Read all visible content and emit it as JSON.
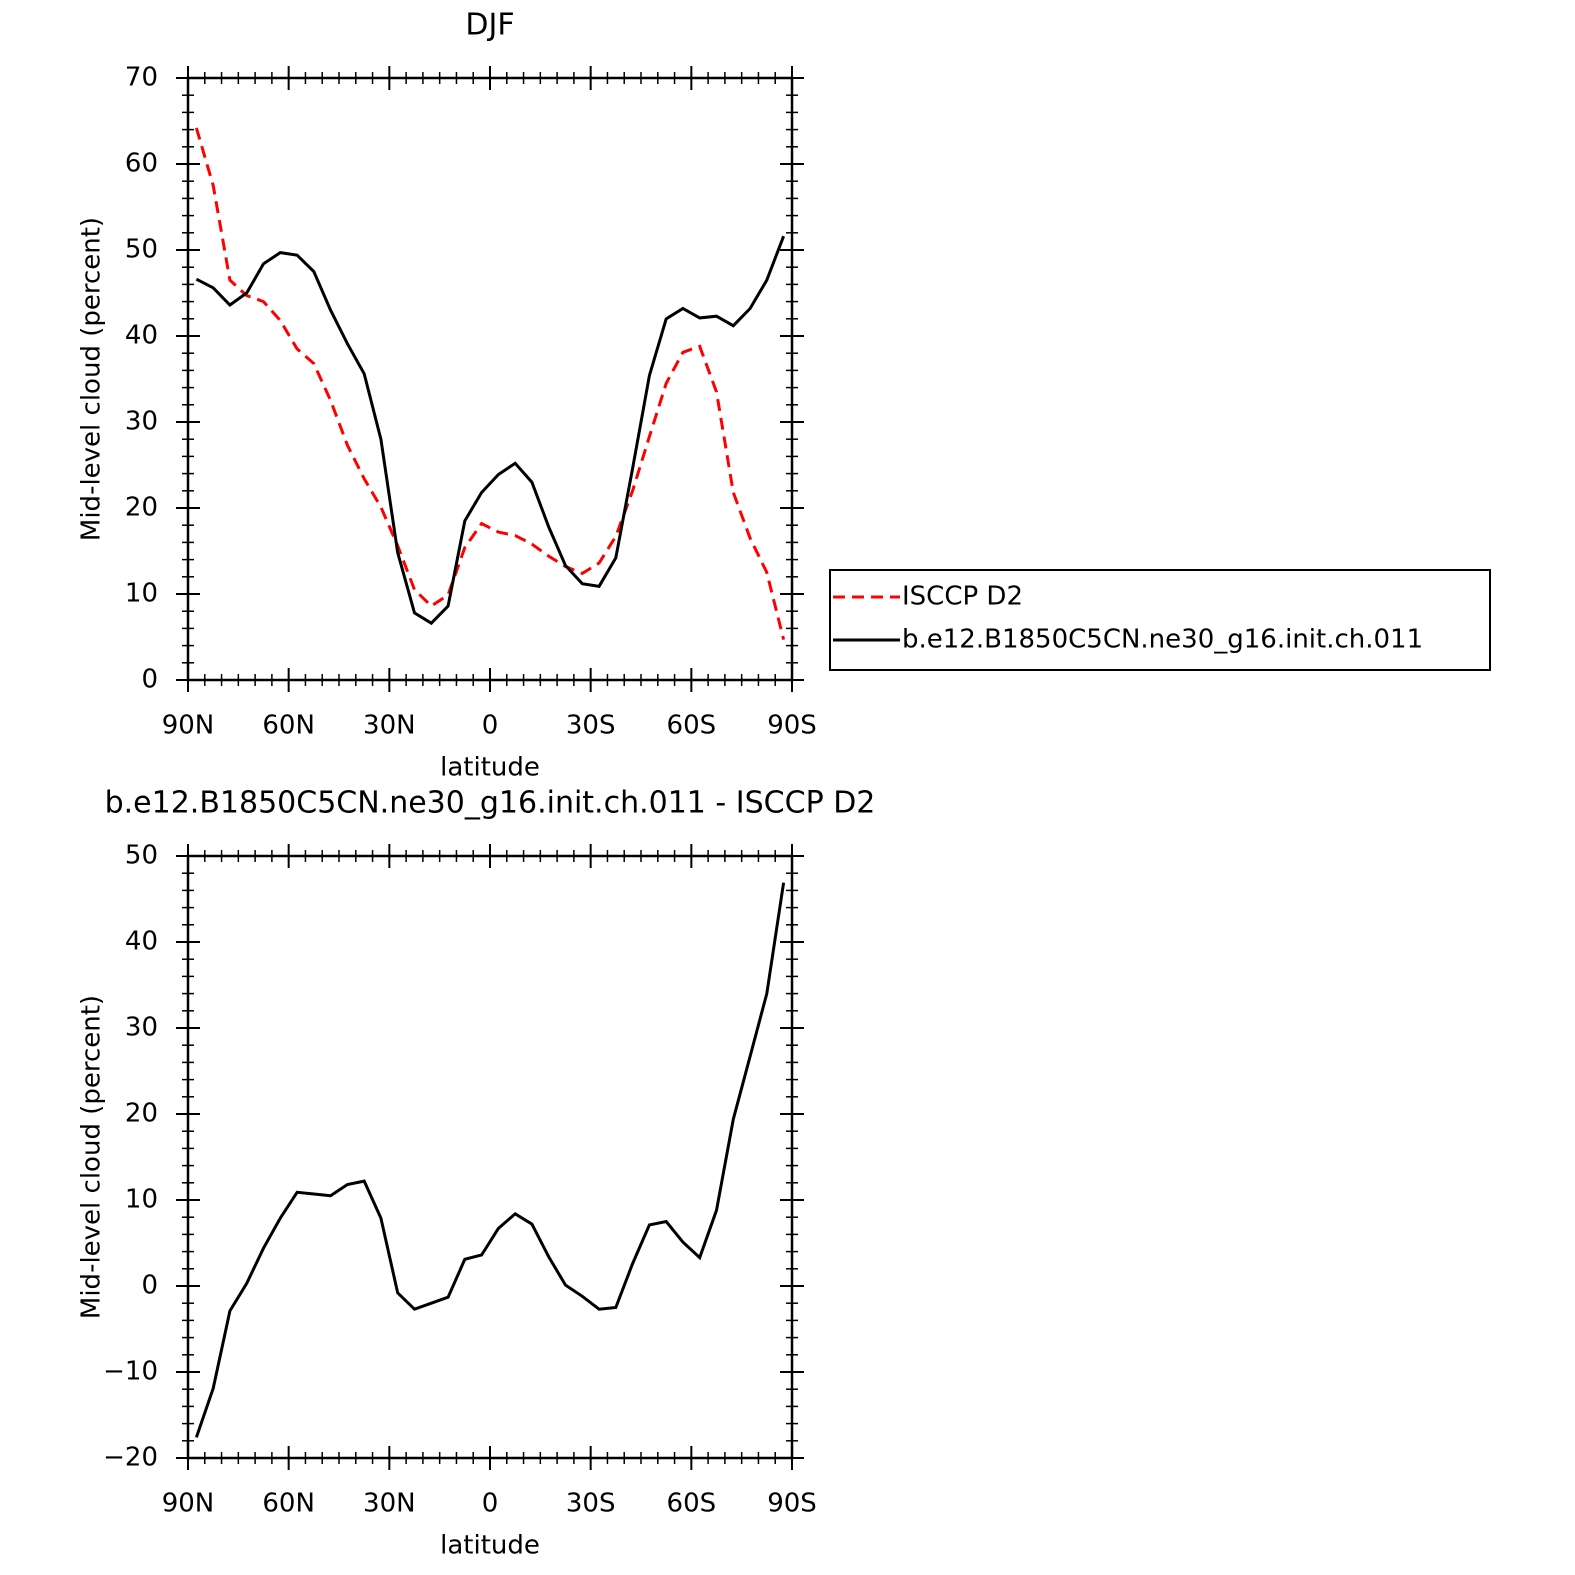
{
  "chart_data": [
    {
      "type": "line",
      "title": "DJF",
      "xlabel": "latitude",
      "ylabel": "Mid-level cloud (percent)",
      "x": [
        87.5,
        82.5,
        77.5,
        72.5,
        67.5,
        62.5,
        57.5,
        52.5,
        47.5,
        42.5,
        37.5,
        32.5,
        27.5,
        22.5,
        17.5,
        12.5,
        7.5,
        2.5,
        -2.5,
        -7.5,
        -12.5,
        -17.5,
        -22.5,
        -27.5,
        -32.5,
        -37.5,
        -42.5,
        -47.5,
        -52.5,
        -57.5,
        -62.5,
        -67.5,
        -72.5,
        -77.5,
        -82.5,
        -87.5
      ],
      "xlim": [
        90,
        -90
      ],
      "xticks": [
        {
          "value": 90,
          "label": "90N"
        },
        {
          "value": 60,
          "label": "60N"
        },
        {
          "value": 30,
          "label": "30N"
        },
        0,
        {
          "value": -30,
          "label": "30S"
        },
        {
          "value": -60,
          "label": "60S"
        },
        {
          "value": -90,
          "label": "90S"
        }
      ],
      "ylim": [
        0,
        70
      ],
      "yticks": [
        0,
        10,
        20,
        30,
        40,
        50,
        60,
        70
      ],
      "legend": "outside-right",
      "series": [
        {
          "name": "ISCCP D2",
          "color": "#ff0000",
          "style": "dashed",
          "values": [
            64.2,
            57.5,
            46.5,
            44.7,
            44,
            41.8,
            38.5,
            36.8,
            32.5,
            27.3,
            23.4,
            20.1,
            15.6,
            10.5,
            8.6,
            9.9,
            15.4,
            18.2,
            17.2,
            16.8,
            15.8,
            14.4,
            13.2,
            12.4,
            13.6,
            16.7,
            22,
            28.3,
            34.5,
            38.1,
            38.8,
            33.5,
            21.8,
            16.5,
            12.5,
            4.7
          ]
        },
        {
          "name": "b.e12.B1850C5CN.ne30_g16.init.ch.011",
          "color": "#000000",
          "style": "solid",
          "values": [
            46.6,
            45.6,
            43.6,
            45,
            48.4,
            49.7,
            49.4,
            47.5,
            43,
            39.1,
            35.6,
            28,
            14.8,
            7.8,
            6.6,
            8.6,
            18.5,
            21.8,
            23.9,
            25.2,
            23,
            17.8,
            13.3,
            11.2,
            10.9,
            14.2,
            24.6,
            35.4,
            42,
            43.2,
            42.1,
            42.3,
            41.2,
            43.2,
            46.5,
            51.6
          ]
        }
      ]
    },
    {
      "type": "line",
      "title": "b.e12.B1850C5CN.ne30_g16.init.ch.011 - ISCCP D2",
      "xlabel": "latitude",
      "ylabel": "Mid-level cloud (percent)",
      "x": [
        87.5,
        82.5,
        77.5,
        72.5,
        67.5,
        62.5,
        57.5,
        52.5,
        47.5,
        42.5,
        37.5,
        32.5,
        27.5,
        22.5,
        17.5,
        12.5,
        7.5,
        2.5,
        -2.5,
        -7.5,
        -12.5,
        -17.5,
        -22.5,
        -27.5,
        -32.5,
        -37.5,
        -42.5,
        -47.5,
        -52.5,
        -57.5,
        -62.5,
        -67.5,
        -72.5,
        -77.5,
        -82.5,
        -87.5
      ],
      "xlim": [
        90,
        -90
      ],
      "xticks": [
        {
          "value": 90,
          "label": "90N"
        },
        {
          "value": 60,
          "label": "60N"
        },
        {
          "value": 30,
          "label": "30N"
        },
        0,
        {
          "value": -30,
          "label": "30S"
        },
        {
          "value": -60,
          "label": "60S"
        },
        {
          "value": -90,
          "label": "90S"
        }
      ],
      "ylim": [
        -20,
        50
      ],
      "yticks": [
        {
          "value": -20,
          "label": "−20"
        },
        {
          "value": -10,
          "label": "−10"
        },
        0,
        10,
        20,
        30,
        40,
        50
      ],
      "series": [
        {
          "color": "#000000",
          "style": "solid",
          "values": [
            -17.6,
            -11.9,
            -2.9,
            0.3,
            4.4,
            7.9,
            10.9,
            10.7,
            10.5,
            11.8,
            12.2,
            7.9,
            -0.8,
            -2.7,
            -2,
            -1.3,
            3.1,
            3.6,
            6.7,
            8.4,
            7.2,
            3.4,
            0.1,
            -1.2,
            -2.7,
            -2.5,
            2.6,
            7.1,
            7.5,
            5.1,
            3.3,
            8.8,
            19.4,
            26.7,
            34,
            46.9
          ]
        }
      ]
    }
  ]
}
